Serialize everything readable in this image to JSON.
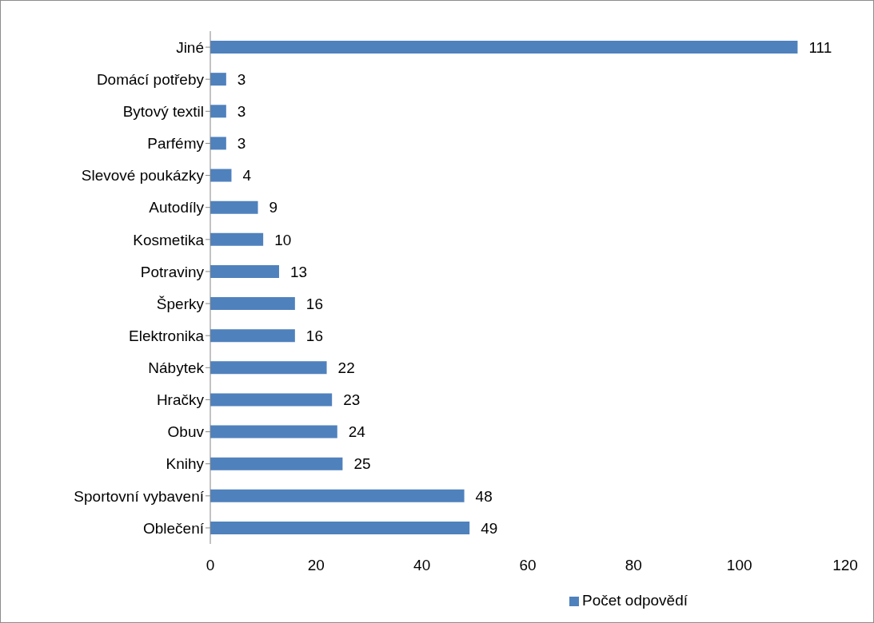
{
  "chart_data": {
    "type": "bar",
    "orientation": "horizontal",
    "categories": [
      "Jiné",
      "Domácí potřeby",
      "Bytový textil",
      "Parfémy",
      "Slevové poukázky",
      "Autodíly",
      "Kosmetika",
      "Potraviny",
      "Šperky",
      "Elektronika",
      "Nábytek",
      "Hračky",
      "Obuv",
      "Knihy",
      "Sportovní vybavení",
      "Oblečení"
    ],
    "series": [
      {
        "name": "Počet odpovědí",
        "color": "#4f81bd",
        "values": [
          111,
          3,
          3,
          3,
          4,
          9,
          10,
          13,
          16,
          16,
          22,
          23,
          24,
          25,
          48,
          49
        ]
      }
    ],
    "xlim": [
      0,
      120
    ],
    "xticks": [
      0,
      20,
      40,
      60,
      80,
      100,
      120
    ],
    "data_labels": true,
    "legend": "bottom",
    "grid": false
  }
}
